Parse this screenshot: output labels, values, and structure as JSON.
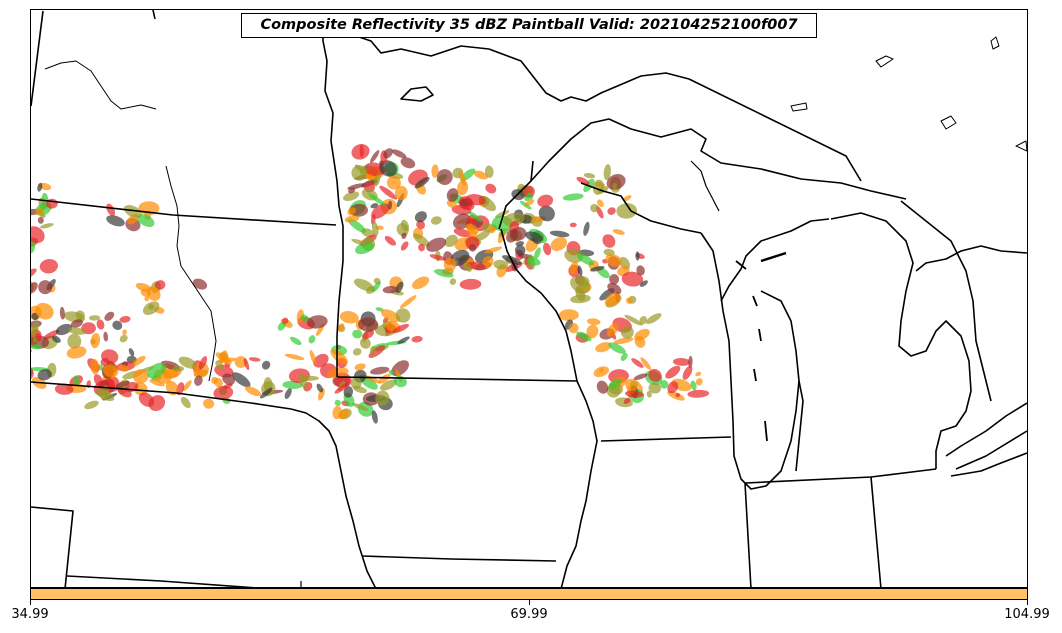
{
  "title": "Composite Reflectivity 35 dBZ Paintball Valid: 202104252100f007",
  "colorbar": {
    "color": "#ffc266",
    "ticks": [
      "34.99",
      "69.99",
      "104.99"
    ]
  },
  "legend_colors": {
    "red": "#e8262a",
    "orange": "#ff8c00",
    "green": "#33cc33",
    "olive": "#9a9a2a",
    "brown": "#8b3030",
    "dark": "#3a3a3a"
  }
}
